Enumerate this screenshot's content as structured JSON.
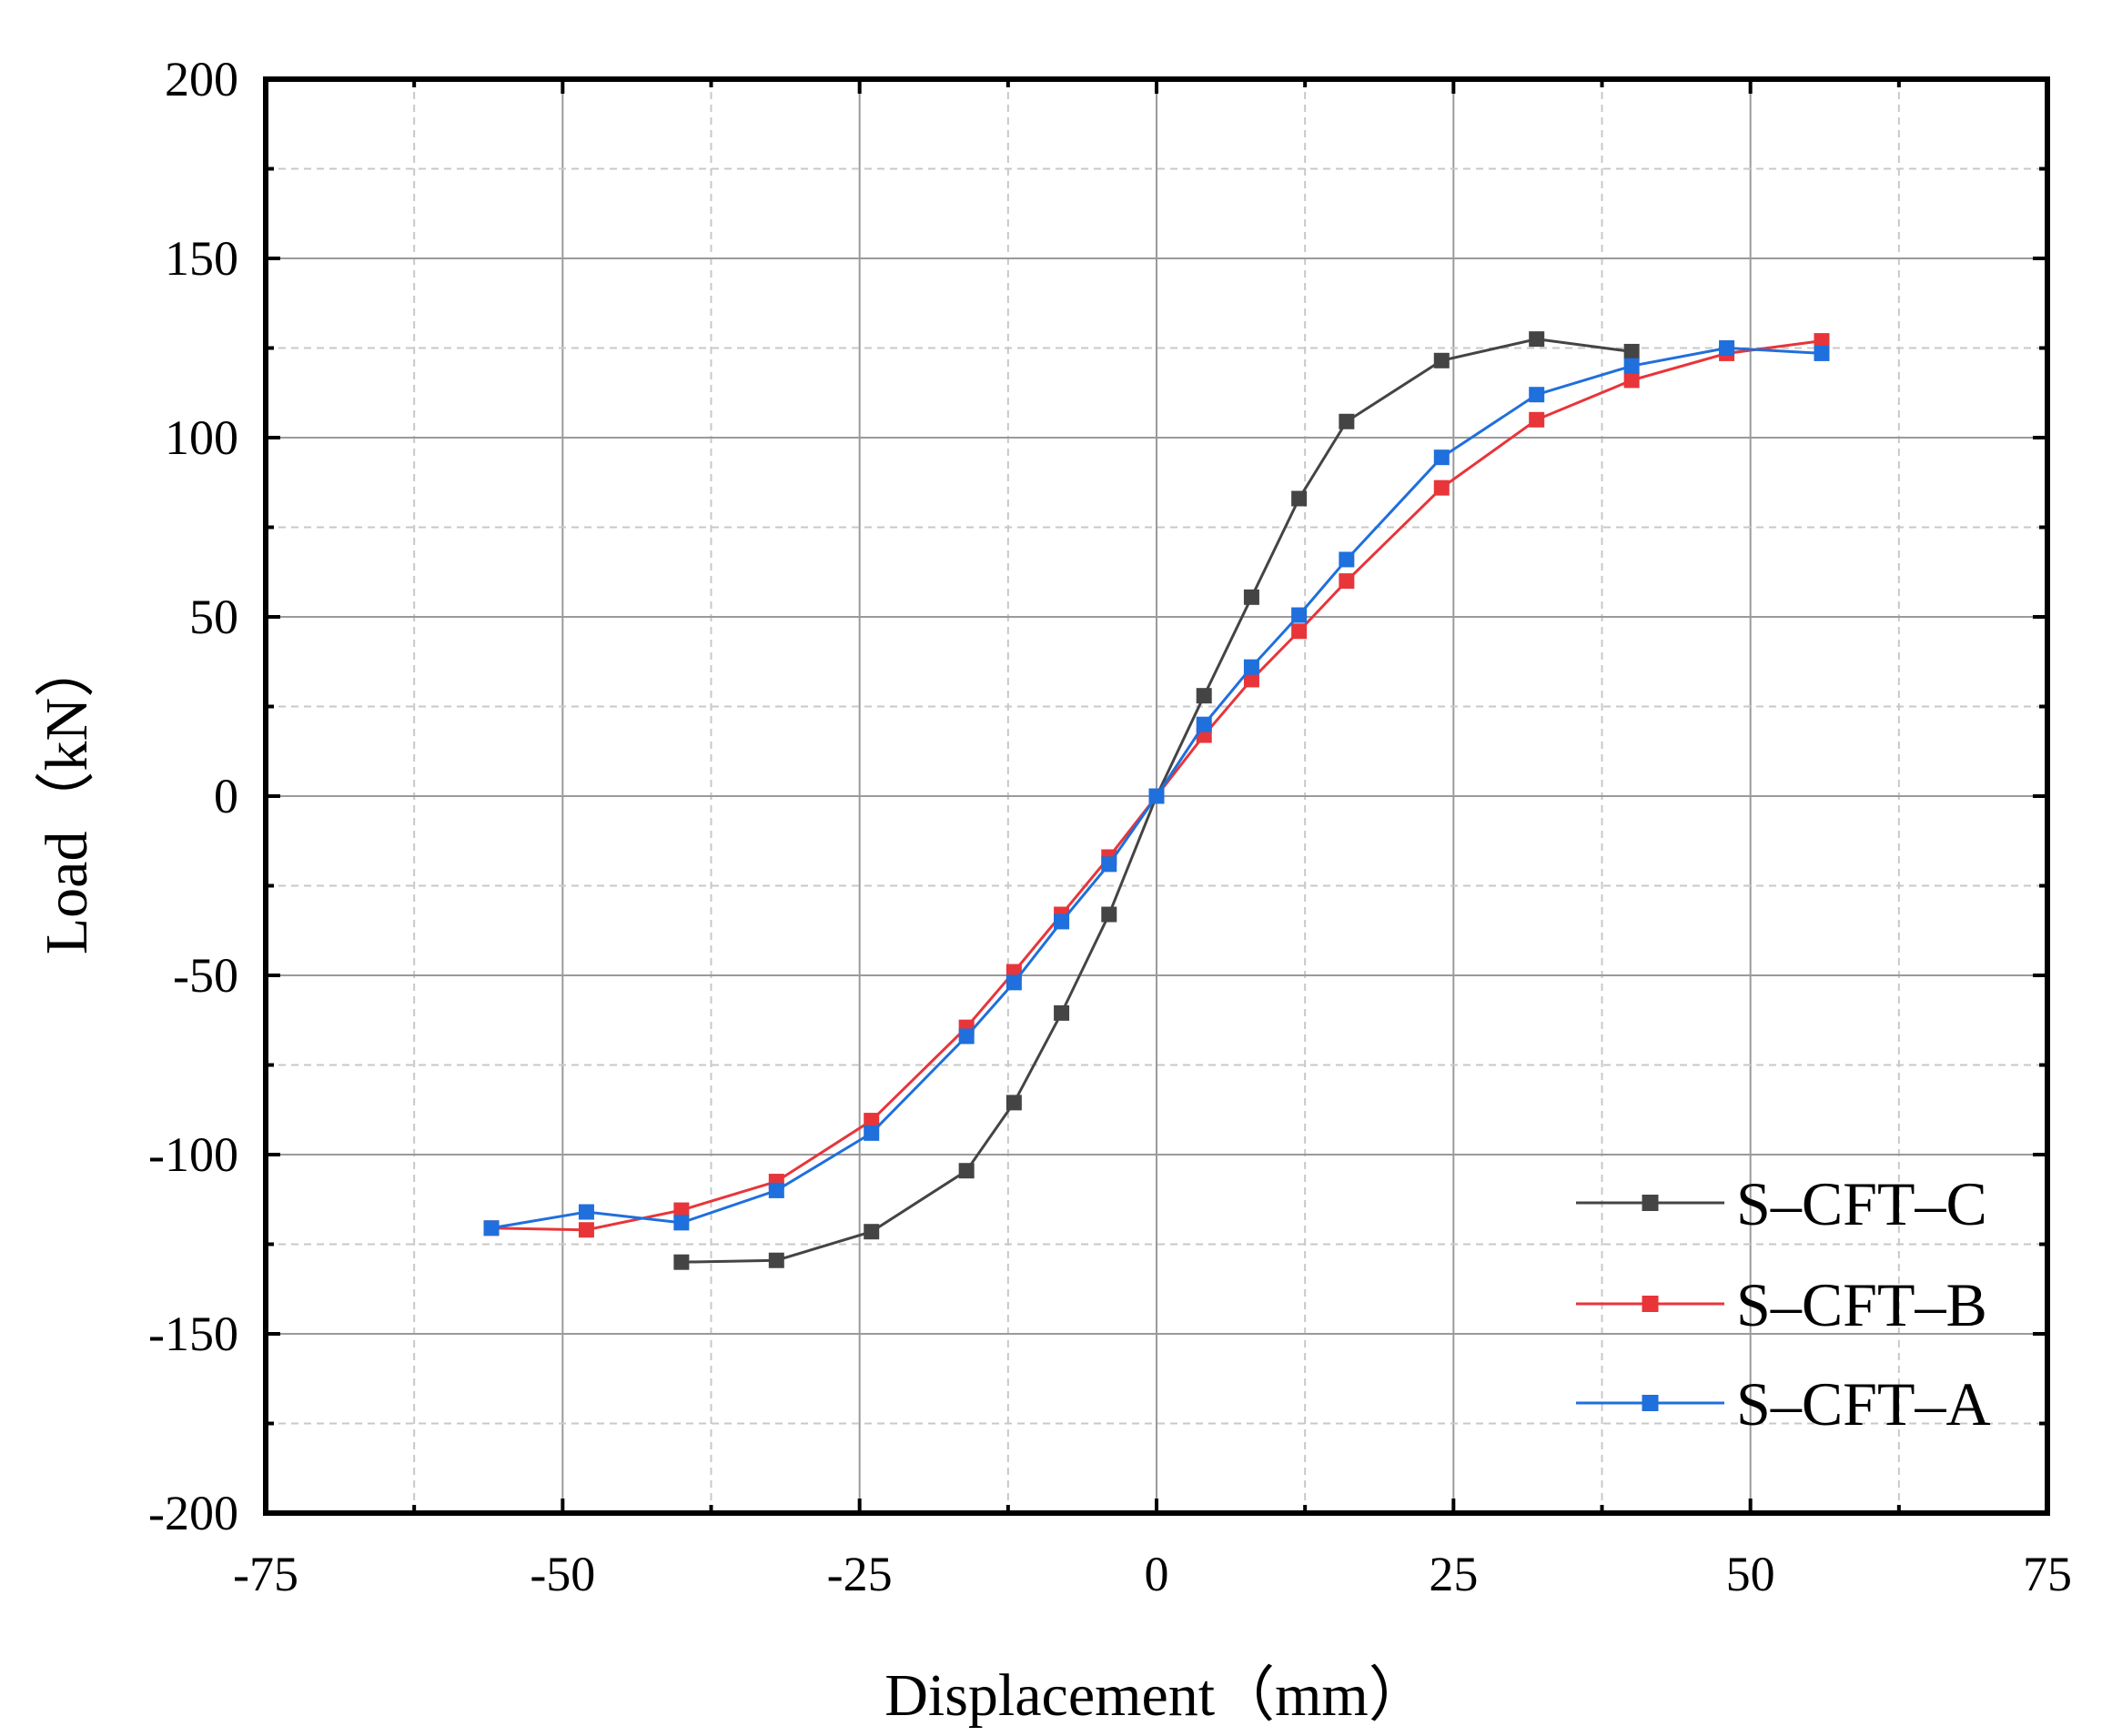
{
  "chart_data": {
    "type": "line",
    "title": "",
    "xlabel": "Displacement（mm）",
    "ylabel": "Load（kN）",
    "xlim": [
      -75,
      75
    ],
    "ylim": [
      -200,
      200
    ],
    "x_major_ticks": [
      -75,
      -50,
      -25,
      0,
      25,
      50,
      75
    ],
    "y_major_ticks": [
      -200,
      -150,
      -100,
      -50,
      0,
      50,
      100,
      150,
      200
    ],
    "x_tick_labels": [
      "-75",
      "-50",
      "-25",
      "0",
      "25",
      "50",
      "75"
    ],
    "y_tick_labels": [
      "-200",
      "-150",
      "-100",
      "-50",
      "0",
      "50",
      "100",
      "150",
      "200"
    ],
    "grid": true,
    "legend_position": "bottom-right",
    "series": [
      {
        "name": "S–CFT–C",
        "color": "#444444",
        "x": [
          -40,
          -32,
          -24,
          -16,
          -12,
          -8,
          -4,
          0,
          4,
          8,
          12,
          16,
          24,
          32,
          40
        ],
        "y": [
          -130,
          -129.5,
          -121.5,
          -104.5,
          -85.5,
          -60.5,
          -33,
          0,
          28,
          55.5,
          83,
          104.5,
          121.5,
          127.5,
          124
        ]
      },
      {
        "name": "S–CFT–B",
        "color": "#e8353a",
        "x": [
          -56,
          -48,
          -40,
          -32,
          -24,
          -16,
          -12,
          -8,
          -4,
          0,
          4,
          8,
          12,
          16,
          24,
          32,
          40,
          48,
          56
        ],
        "y": [
          -120.5,
          -121,
          -115.5,
          -107.5,
          -90.5,
          -64.5,
          -49,
          -33,
          -17,
          0,
          17,
          32.5,
          46,
          60,
          86,
          105,
          116,
          123.5,
          127
        ]
      },
      {
        "name": "S–CFT–A",
        "color": "#1f6fdc",
        "x": [
          -56,
          -48,
          -40,
          -32,
          -24,
          -16,
          -12,
          -8,
          -4,
          0,
          4,
          8,
          12,
          16,
          24,
          32,
          40,
          48,
          56
        ],
        "y": [
          -120.5,
          -116,
          -119,
          -110,
          -94,
          -67,
          -52,
          -35,
          -19,
          0,
          20,
          36,
          50.5,
          66,
          94.5,
          112,
          120,
          125,
          123.5
        ]
      }
    ]
  }
}
